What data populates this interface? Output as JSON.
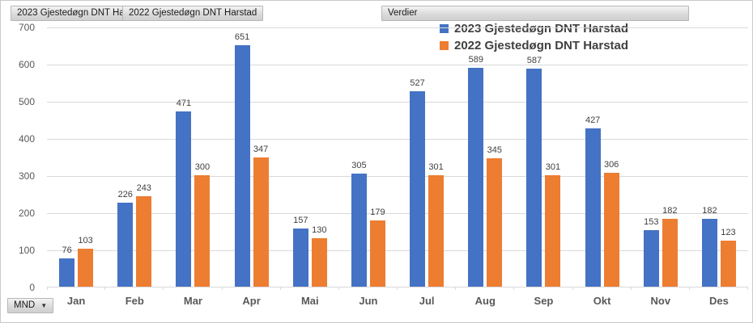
{
  "field_buttons": {
    "series_2023": "2023 Gjestedøgn DNT Harstad",
    "series_2022": "2022 Gjestedøgn DNT Harstad",
    "values": "Verdier",
    "axis": "MND",
    "axis_arrow": "▼"
  },
  "legend": [
    {
      "label": "2023 Gjestedøgn DNT Harstad",
      "color": "#4472C4"
    },
    {
      "label": "2022 Gjestedøgn DNT Harstad",
      "color": "#ED7D31"
    }
  ],
  "chart_data": {
    "type": "bar",
    "title": "",
    "xlabel": "",
    "ylabel": "",
    "categories": [
      "Jan",
      "Feb",
      "Mar",
      "Apr",
      "Mai",
      "Jun",
      "Jul",
      "Aug",
      "Sep",
      "Okt",
      "Nov",
      "Des"
    ],
    "series": [
      {
        "name": "2023 Gjestedøgn DNT Harstad",
        "color": "#4472C4",
        "values": [
          76,
          226,
          471,
          651,
          157,
          305,
          527,
          589,
          587,
          427,
          153,
          182
        ]
      },
      {
        "name": "2022 Gjestedøgn DNT Harstad",
        "color": "#ED7D31",
        "values": [
          103,
          243,
          300,
          347,
          130,
          179,
          301,
          345,
          301,
          306,
          182,
          123
        ]
      }
    ],
    "ylim": [
      0,
      700
    ],
    "yticks": [
      0,
      100,
      200,
      300,
      400,
      500,
      600,
      700
    ],
    "grid": true,
    "data_labels": true,
    "legend_position": "top"
  },
  "colors": {
    "gridline": "#d9d9d9",
    "axis_text": "#595959",
    "data_label_text": "#404040"
  }
}
